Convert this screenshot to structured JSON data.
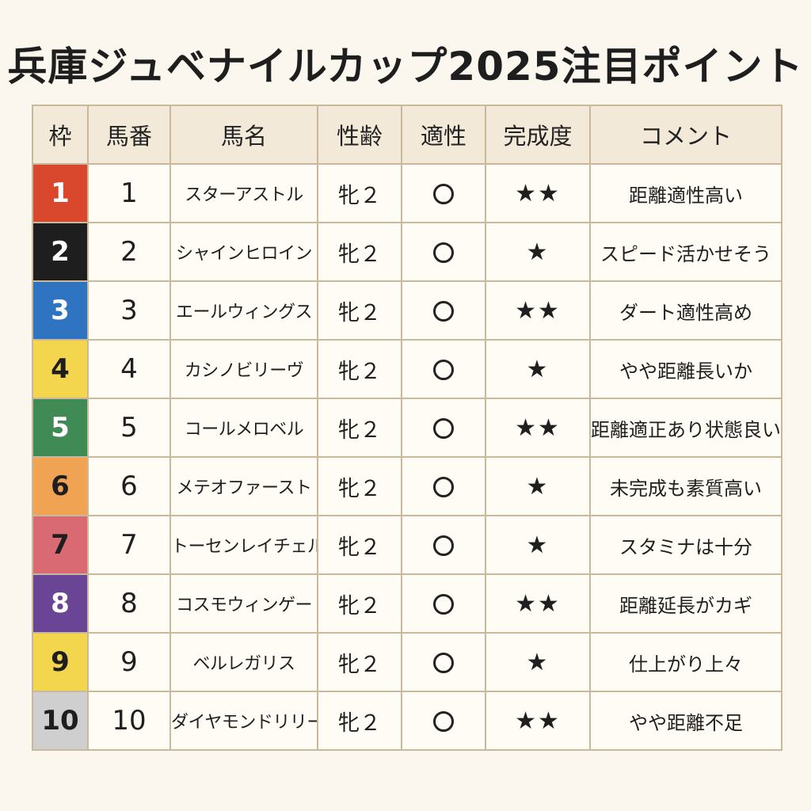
{
  "title": "兵庫ジュベナイルカップ2025注目ポイント",
  "headers": [
    "枠",
    "馬番",
    "馬名",
    "性齢",
    "適性",
    "完成度",
    "コメント"
  ],
  "rows": [
    {
      "waku": "1",
      "waku_color": "#d9482d",
      "waku_text_color": "#ffffff",
      "umaban": "1",
      "name": "スターアストル",
      "sex_age": "牝２",
      "fit": "○",
      "completion": "★★",
      "comment": "距離適性高い"
    },
    {
      "waku": "2",
      "waku_color": "#1e1e1e",
      "waku_text_color": "#ffffff",
      "umaban": "2",
      "name": "シャインヒロイン",
      "sex_age": "牝２",
      "fit": "○",
      "completion": "★",
      "comment": "スピード活かせそう"
    },
    {
      "waku": "3",
      "waku_color": "#2f74c0",
      "waku_text_color": "#ffffff",
      "umaban": "3",
      "name": "エールウィングス",
      "sex_age": "牝２",
      "fit": "○",
      "completion": "★★",
      "comment": "ダート適性高め"
    },
    {
      "waku": "4",
      "waku_color": "#f4d64e",
      "waku_text_color": "#1e1e1e",
      "umaban": "4",
      "name": "カシノビリーヴ",
      "sex_age": "牝２",
      "fit": "○",
      "completion": "★",
      "comment": "やや距離長いか"
    },
    {
      "waku": "5",
      "waku_color": "#3f8a55",
      "waku_text_color": "#ffffff",
      "umaban": "5",
      "name": "コールメロベル",
      "sex_age": "牝２",
      "fit": "○",
      "completion": "★★",
      "comment": "距離適正あり状態良い"
    },
    {
      "waku": "6",
      "waku_color": "#f0a453",
      "waku_text_color": "#1e1e1e",
      "umaban": "6",
      "name": "メテオファースト",
      "sex_age": "牝２",
      "fit": "○",
      "completion": "★",
      "comment": "未完成も素質高い"
    },
    {
      "waku": "7",
      "waku_color": "#d96a74",
      "waku_text_color": "#1e1e1e",
      "umaban": "7",
      "name": "トーセンレイチェル",
      "sex_age": "牝２",
      "fit": "○",
      "completion": "★",
      "comment": "スタミナは十分"
    },
    {
      "waku": "8",
      "waku_color": "#6a4596",
      "waku_text_color": "#ffffff",
      "umaban": "8",
      "name": "コスモウィンゲー",
      "sex_age": "牝２",
      "fit": "○",
      "completion": "★★",
      "comment": "距離延長がカギ"
    },
    {
      "waku": "9",
      "waku_color": "#f4d64e",
      "waku_text_color": "#1e1e1e",
      "umaban": "9",
      "name": "ベルレガリス",
      "sex_age": "牝２",
      "fit": "○",
      "completion": "★",
      "comment": "仕上がり上々"
    },
    {
      "waku": "10",
      "waku_color": "#cfcfcf",
      "waku_text_color": "#1e1e1e",
      "umaban": "10",
      "name": "ダイヤモンドリリー",
      "sex_age": "牝２",
      "fit": "○",
      "completion": "★★",
      "comment": "やや距離不足"
    }
  ]
}
